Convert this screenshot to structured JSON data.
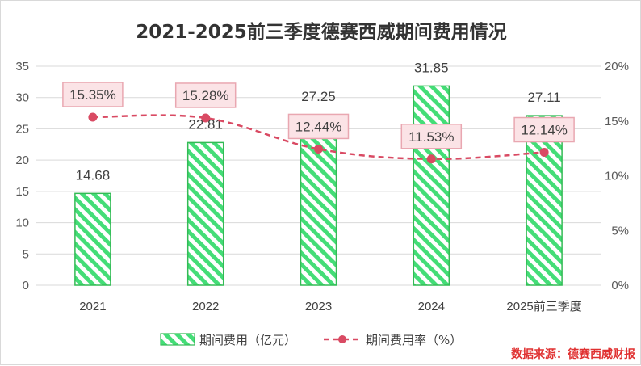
{
  "chart_data": {
    "type": "bar",
    "title": "2021-2025前三季度德赛西威期间费用情况",
    "categories": [
      "2021",
      "2022",
      "2023",
      "2024",
      "2025前三季度"
    ],
    "series": [
      {
        "name": "期间费用（亿元）",
        "type": "bar",
        "axis": "left",
        "values": [
          14.68,
          22.81,
          27.25,
          31.85,
          27.11
        ]
      },
      {
        "name": "期间费用率（%）",
        "type": "line",
        "axis": "right",
        "values": [
          15.35,
          15.28,
          12.44,
          11.53,
          12.14
        ]
      }
    ],
    "bar_labels": [
      "14.68",
      "22.81",
      "27.25",
      "31.85",
      "27.11"
    ],
    "line_labels": [
      "15.35%",
      "15.28%",
      "12.44%",
      "11.53%",
      "12.14%"
    ],
    "y_left": {
      "min": 0,
      "max": 35,
      "ticks": [
        "0",
        "5",
        "10",
        "15",
        "20",
        "25",
        "30",
        "35"
      ]
    },
    "y_right": {
      "min": 0,
      "max": 20,
      "ticks": [
        "0%",
        "5%",
        "10%",
        "15%",
        "20%"
      ]
    },
    "legend": [
      "期间费用（亿元）",
      "期间费用率（%）"
    ],
    "legend_position": "bottom",
    "source_note": "数据来源：德赛西威财报",
    "colors": {
      "bar_stripe": "#44dd77",
      "bar_border": "#33bb55",
      "line": "#d94a63",
      "label_box_fill": "#fbe3e6",
      "label_box_border": "#e9a7b1",
      "grid": "#d9d9d9",
      "source_text": "#e03030"
    }
  }
}
